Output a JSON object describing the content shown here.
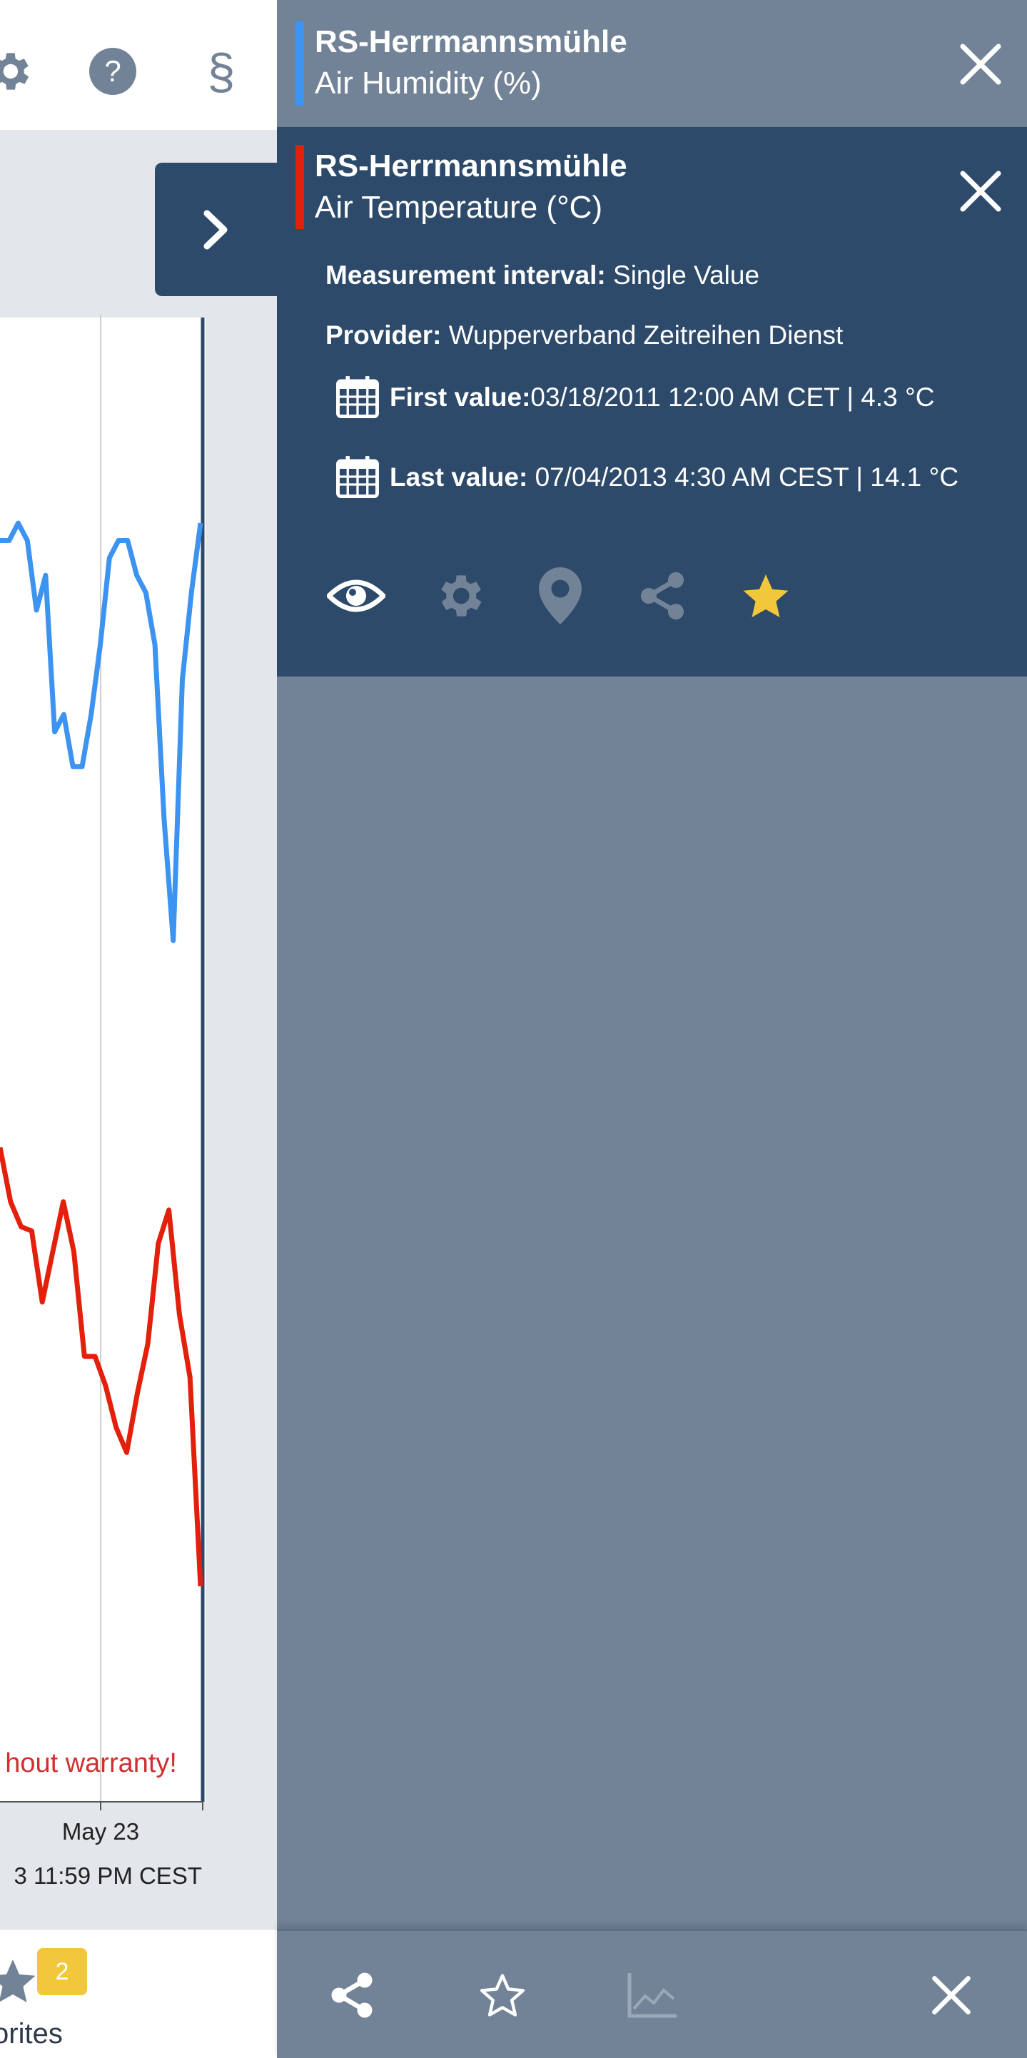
{
  "colors": {
    "panel_bg": "#738397",
    "active_entry_bg": "#2d4a6a",
    "humidity_series": "#3d93f0",
    "temperature_series": "#e3200c",
    "favorite_star": "#f3c73a",
    "warning_text": "#d03030"
  },
  "toolbar": {
    "icons": [
      "gear-icon",
      "help-icon",
      "legal-paragraph-icon"
    ],
    "help_glyph": "?",
    "legal_glyph": "§"
  },
  "chart": {
    "warning_text": "hout warranty!",
    "x_tick_label": "May 23",
    "timestamp": "3 11:59 PM CEST"
  },
  "chart_data": {
    "type": "line",
    "title": "",
    "xlabel": "",
    "ylabel": "",
    "x_tick_labels": [
      "May 23"
    ],
    "series": [
      {
        "name": "Air Humidity (%)",
        "color": "#3d93f0",
        "values": [
          88,
          88,
          89,
          88,
          84,
          86,
          77,
          78,
          75,
          75,
          78,
          82,
          87,
          88,
          88,
          86,
          85,
          82,
          72,
          65,
          80,
          85,
          89
        ]
      },
      {
        "name": "Air Temperature (°C)",
        "color": "#e3200c",
        "values": [
          16.5,
          15.2,
          14.6,
          14.5,
          12.8,
          14.0,
          15.2,
          14.0,
          11.5,
          11.5,
          10.8,
          9.8,
          9.2,
          10.6,
          11.8,
          14.2,
          15.0,
          12.5,
          11.0,
          6.0
        ]
      }
    ]
  },
  "favorites": {
    "count": "2",
    "label": "vorites"
  },
  "panel": {
    "entries": [
      {
        "station": "RS-Herrmannsmühle",
        "phenomenon": "Air Humidity (%)",
        "color": "#3d93f0"
      },
      {
        "station": "RS-Herrmannsmühle",
        "phenomenon": "Air Temperature (°C)",
        "color": "#e3200c",
        "interval_label": "Measurement interval:",
        "interval_value": "Single Value",
        "provider_label": "Provider:",
        "provider_value": "Wupperverband Zeitreihen Dienst",
        "first_label": "First value:",
        "first_value": "03/18/2011 12:00 AM CET | 4.3 °C",
        "last_label": "Last value:",
        "last_value": "07/04/2013 4:30 AM CEST | 14.1 °C",
        "actions": [
          "eye-icon",
          "gear-icon",
          "location-pin-icon",
          "share-icon",
          "favorite-star-icon"
        ]
      }
    ],
    "footer_actions": [
      "share-icon",
      "star-outline-icon",
      "chart-icon",
      "close-icon"
    ]
  }
}
